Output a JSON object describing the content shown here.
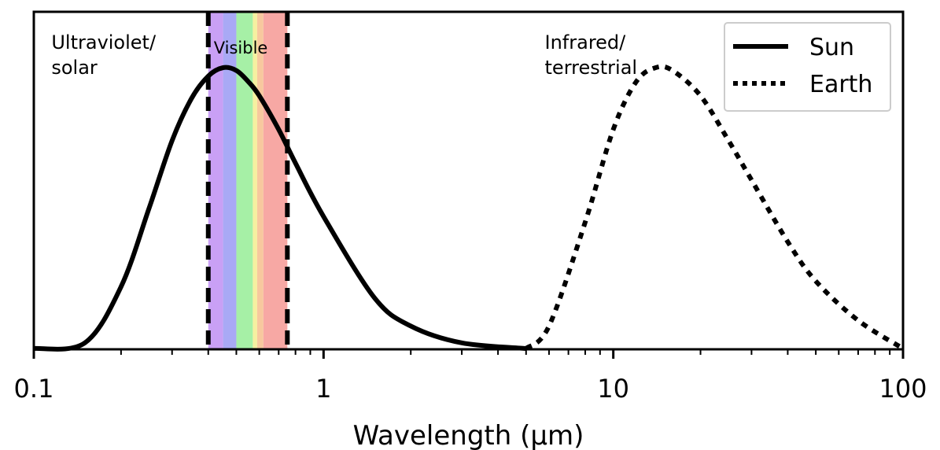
{
  "chart_data": {
    "type": "line",
    "xlabel": "Wavelength (μm)",
    "ylabel": "",
    "xscale": "log",
    "xlim": [
      0.1,
      100
    ],
    "grid": false,
    "x_tick_labels": [
      "0.1",
      "1",
      "10",
      "100"
    ],
    "legend": {
      "placement": "top-right",
      "entries": [
        {
          "label": "Sun",
          "style": "solid"
        },
        {
          "label": "Earth",
          "style": "dotted"
        }
      ]
    },
    "series": [
      {
        "name": "Sun",
        "style": "solid",
        "color": "#000000",
        "x": [
          0.1,
          0.15,
          0.2,
          0.25,
          0.3,
          0.35,
          0.4,
          0.45,
          0.5,
          0.55,
          0.6,
          0.7,
          0.8,
          1.0,
          1.5,
          2.0,
          3.0,
          5.0
        ],
        "relative_intensity": [
          0.0,
          0.02,
          0.22,
          0.5,
          0.74,
          0.89,
          0.97,
          1.0,
          0.99,
          0.95,
          0.9,
          0.78,
          0.66,
          0.47,
          0.18,
          0.08,
          0.02,
          0.0
        ]
      },
      {
        "name": "Earth",
        "style": "dotted",
        "color": "#000000",
        "x": [
          5,
          6,
          8,
          10,
          12,
          14,
          16,
          20,
          25,
          30,
          40,
          50,
          70,
          100
        ],
        "relative_intensity": [
          0.0,
          0.08,
          0.45,
          0.78,
          0.95,
          1.0,
          0.99,
          0.9,
          0.74,
          0.6,
          0.38,
          0.24,
          0.1,
          0.0
        ]
      }
    ],
    "visible_band": {
      "label": "Visible",
      "x_range": [
        0.4,
        0.75
      ],
      "boundary_style": "dashed",
      "color_bands": [
        {
          "from": 0.4,
          "to": 0.45,
          "color": "#c9a0f5"
        },
        {
          "from": 0.45,
          "to": 0.5,
          "color": "#a9a9f5"
        },
        {
          "from": 0.5,
          "to": 0.57,
          "color": "#a6f0a6"
        },
        {
          "from": 0.57,
          "to": 0.59,
          "color": "#f5f0a0"
        },
        {
          "from": 0.59,
          "to": 0.62,
          "color": "#f7c89e"
        },
        {
          "from": 0.62,
          "to": 0.75,
          "color": "#f7a8a4"
        }
      ]
    },
    "annotations": [
      {
        "text_lines": [
          "Ultraviolet/",
          "solar"
        ],
        "x_data": 0.115
      },
      {
        "text_lines": [
          "Infrared/",
          "terrestrial"
        ],
        "x_data": 5.8
      }
    ]
  }
}
